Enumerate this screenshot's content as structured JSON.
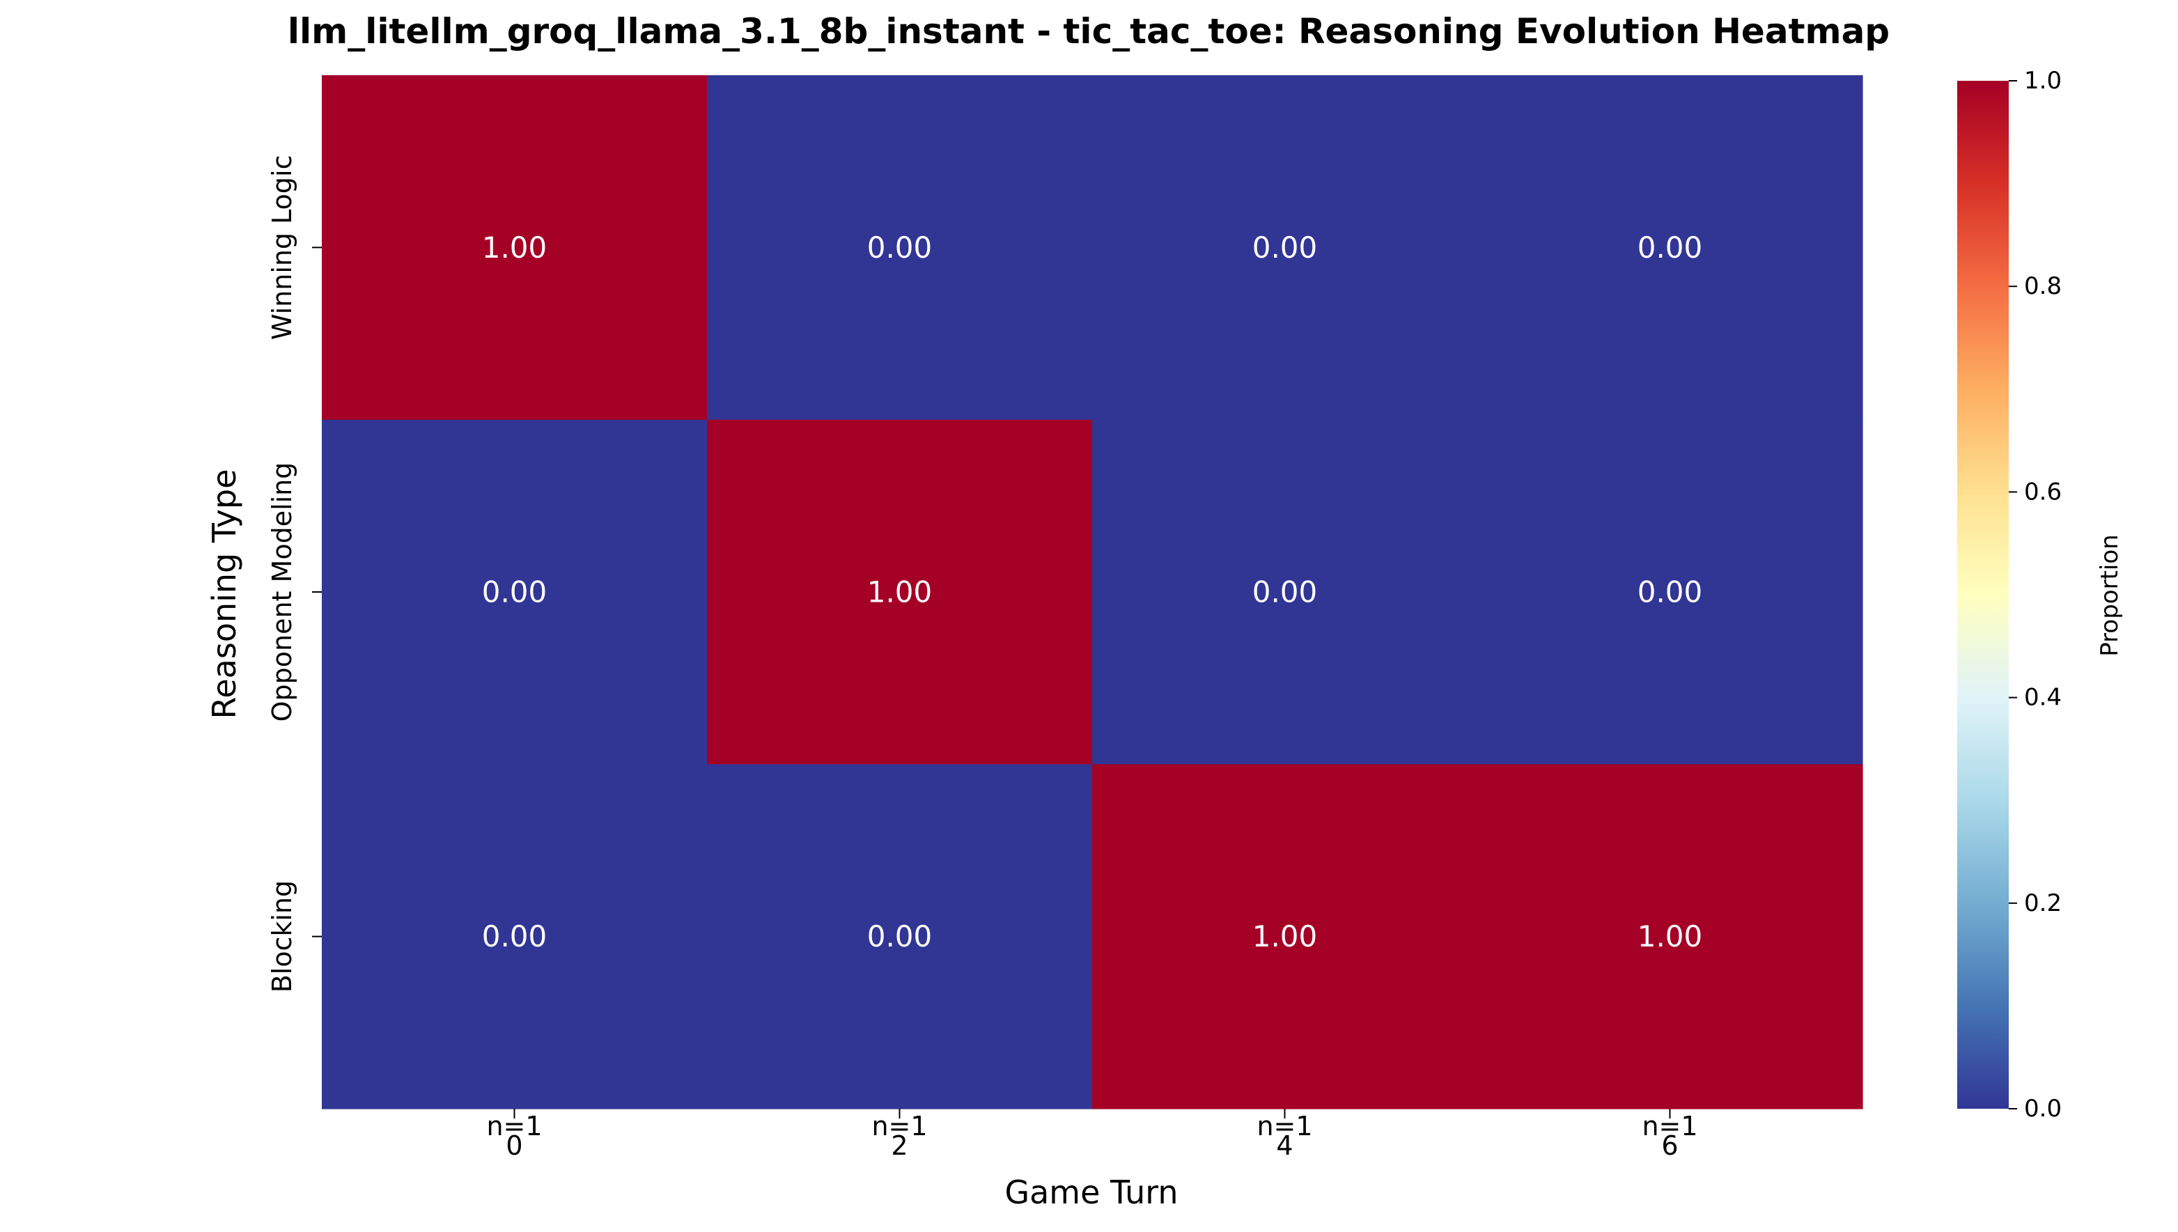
{
  "chart_data": {
    "type": "heatmap",
    "title": "llm_litellm_groq_llama_3.1_8b_instant - tic_tac_toe: Reasoning Evolution Heatmap",
    "xlabel": "Game Turn",
    "ylabel": "Reasoning Type",
    "x_categories": [
      "0",
      "2",
      "4",
      "6"
    ],
    "x_annotations": [
      "n=1",
      "n=1",
      "n=1",
      "n=1"
    ],
    "y_categories": [
      "Winning Logic",
      "Opponent Modeling",
      "Blocking"
    ],
    "values": [
      [
        1.0,
        0.0,
        0.0,
        0.0
      ],
      [
        0.0,
        1.0,
        0.0,
        0.0
      ],
      [
        0.0,
        0.0,
        1.0,
        1.0
      ]
    ],
    "value_labels": [
      [
        "1.00",
        "0.00",
        "0.00",
        "0.00"
      ],
      [
        "0.00",
        "1.00",
        "0.00",
        "0.00"
      ],
      [
        "0.00",
        "0.00",
        "1.00",
        "1.00"
      ]
    ],
    "colorbar": {
      "label": "Proportion",
      "range": [
        0.0,
        1.0
      ],
      "ticks": [
        "0.0",
        "0.2",
        "0.4",
        "0.6",
        "0.8",
        "1.0"
      ],
      "colormap": "RdYlBu_r",
      "stops": [
        "#313695",
        "#4575b4",
        "#74add1",
        "#abd9e9",
        "#e0f3f8",
        "#ffffbf",
        "#fee090",
        "#fdae61",
        "#f46d43",
        "#d73027",
        "#a50026"
      ]
    },
    "text_color": "#ffffff"
  }
}
